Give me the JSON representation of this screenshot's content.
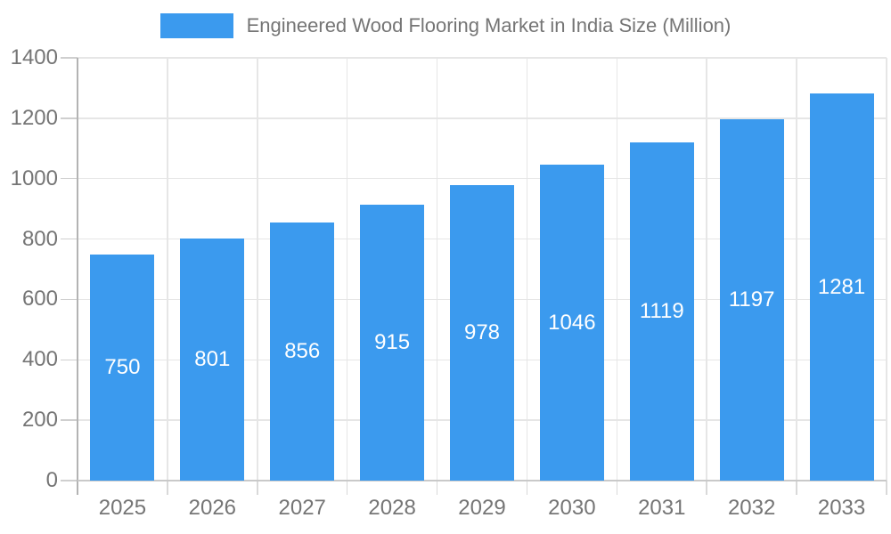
{
  "chart_data": {
    "type": "bar",
    "title": "Engineered Wood Flooring Market in India Size (Million)",
    "series_name": "Engineered Wood Flooring Market in India Size (Million)",
    "categories": [
      "2025",
      "2026",
      "2027",
      "2028",
      "2029",
      "2030",
      "2031",
      "2032",
      "2033"
    ],
    "values": [
      750,
      801,
      856,
      915,
      978,
      1046,
      1119,
      1197,
      1281
    ],
    "value_labels_shown": true,
    "xlabel": "",
    "ylabel": "",
    "ylim": [
      0,
      1400
    ],
    "yticks": [
      0,
      200,
      400,
      600,
      800,
      1000,
      1200,
      1400
    ],
    "grid": true,
    "legend_position": "top",
    "bar_color": "#3b9aee",
    "value_label_color": "#ffffff",
    "tick_label_color": "#757575",
    "gridline_color": "#e6e6e6",
    "axis_color": "#b3b3b3"
  }
}
